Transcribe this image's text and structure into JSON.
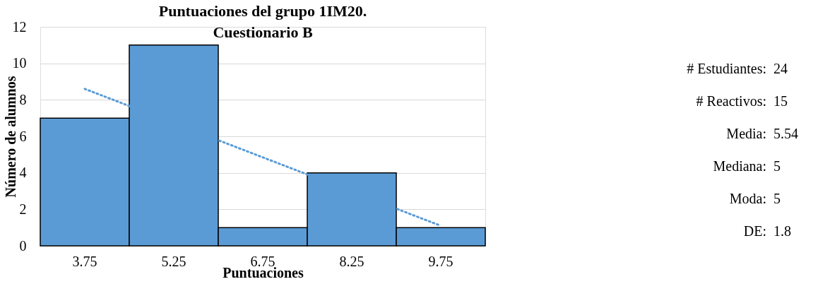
{
  "chart_data": {
    "type": "bar",
    "title": "Puntuaciones del grupo 1IM20.\nCuestionario B",
    "xlabel": "Puntuaciones",
    "ylabel": "Número de alumnos",
    "categories": [
      "3.75",
      "5.25",
      "6.75",
      "8.25",
      "9.75"
    ],
    "series": [
      {
        "color": "#5b9bd5",
        "values": [
          7,
          11,
          1,
          4,
          1
        ]
      },
      {
        "type": "line",
        "color": "#5b9bd5",
        "line_style": "dotted",
        "x": [
          "3.75",
          "9.75"
        ],
        "values": [
          8.6,
          1.1
        ]
      }
    ],
    "ylim": [
      0,
      12
    ],
    "yticks": [
      0,
      2,
      4,
      6,
      8,
      10,
      12
    ],
    "grid": "y",
    "annotations": [
      "# Estudiantes: 24",
      "# Reactivos: 15",
      "Media: 5.54",
      "Mediana: 5",
      "Moda: 5",
      "DE: 1.8"
    ]
  }
}
